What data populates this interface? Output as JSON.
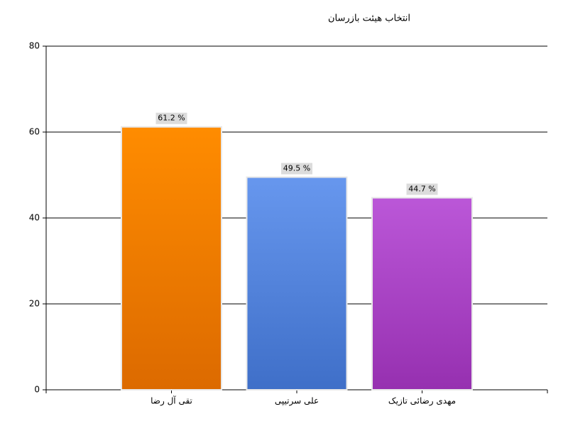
{
  "chart_data": {
    "type": "bar",
    "title": "انتخاب هیئت بازرسان",
    "categories": [
      "تقی آل رضا",
      "علی سرتیپی",
      "مهدی رضائی تازیک"
    ],
    "values": [
      61.2,
      49.5,
      44.7
    ],
    "value_labels": [
      "61.2 %",
      "49.5 %",
      "44.7 %"
    ],
    "colors": [
      "#ff8c00",
      "#6495ed",
      "#ba55d3"
    ],
    "ylim": [
      0,
      80
    ],
    "yticks": [
      0,
      20,
      40,
      60,
      80
    ],
    "grid": true
  }
}
